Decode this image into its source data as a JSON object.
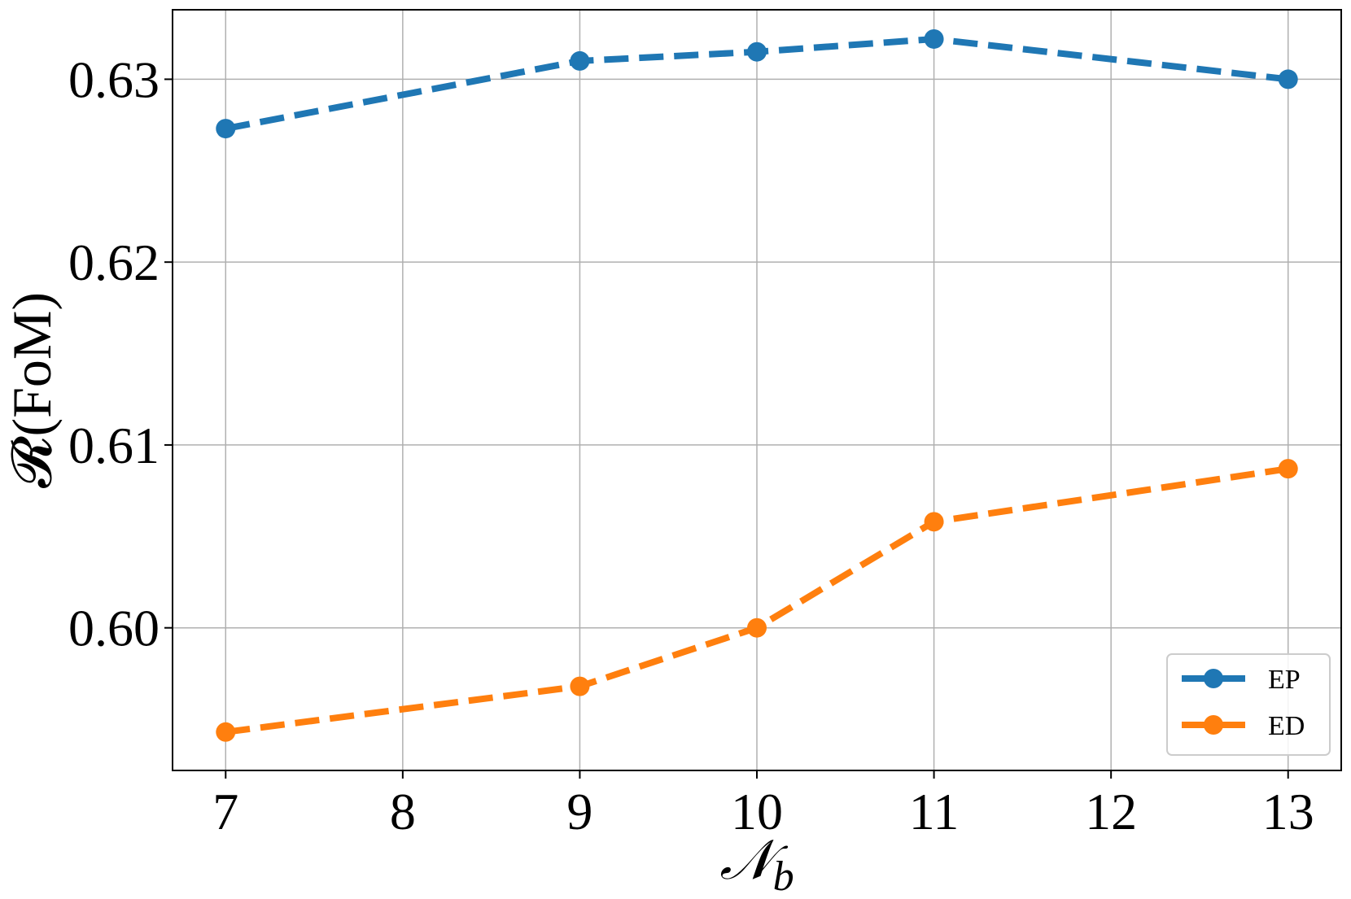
{
  "chart_data": {
    "type": "line",
    "title": "",
    "xlabel": "𝒩",
    "xlabel_sub": "b",
    "ylabel": "𝓡(FoM)",
    "x": [
      7,
      9,
      10,
      11,
      13
    ],
    "xticks": [
      7,
      8,
      9,
      10,
      11,
      12,
      13
    ],
    "xtick_labels": [
      "7",
      "8",
      "9",
      "10",
      "11",
      "12",
      "13"
    ],
    "xlim": [
      6.7,
      13.3
    ],
    "yticks": [
      0.6,
      0.61,
      0.62,
      0.63
    ],
    "ytick_labels": [
      "0.60",
      "0.61",
      "0.62",
      "0.63"
    ],
    "ylim": [
      0.5922,
      0.6338
    ],
    "grid": true,
    "legend_position": "lower-right",
    "series": [
      {
        "name": "EP",
        "color": "#1f77b4",
        "line_style": "dashed",
        "marker": "circle",
        "values": [
          0.6273,
          0.631,
          0.6315,
          0.6322,
          0.63
        ]
      },
      {
        "name": "ED",
        "color": "#ff7f0e",
        "line_style": "dashed",
        "marker": "circle",
        "values": [
          0.5943,
          0.5968,
          0.6,
          0.6058,
          0.6087
        ]
      }
    ]
  }
}
